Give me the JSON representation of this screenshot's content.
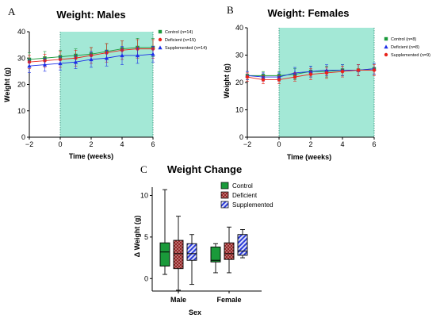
{
  "panel_labels": {
    "A": "A",
    "B": "B",
    "C": "C"
  },
  "chart_data": [
    {
      "type": "line",
      "title": "Weight: Males",
      "xlabel": "Time (weeks)",
      "ylabel": "Weight (g)",
      "xlim": [
        -2,
        6
      ],
      "ylim": [
        0,
        40
      ],
      "x_ticks": [
        -2,
        0,
        2,
        4,
        6
      ],
      "y_ticks": [
        0,
        10,
        20,
        30,
        40
      ],
      "x_tick_labels": [
        "−2",
        "0",
        "2",
        "4",
        "6"
      ],
      "y_tick_labels": [
        "0",
        "10",
        "20",
        "30",
        "40"
      ],
      "shaded_region": [
        0,
        6
      ],
      "shade_color": "#a3e8d6",
      "legend_position": "top-right",
      "x": [
        -2,
        -1,
        0,
        1,
        2,
        3,
        4,
        5,
        6
      ],
      "series": [
        {
          "name": "Control (n=14)",
          "color": "#1a9a3a",
          "marker": "square",
          "values": [
            29.5,
            30.0,
            30.5,
            31.0,
            31.5,
            32.5,
            33.5,
            34.0,
            34.0
          ],
          "errors": [
            2.5,
            2.5,
            2.5,
            2.5,
            2.5,
            3.0,
            3.0,
            3.5,
            3.5
          ]
        },
        {
          "name": "Deficient (n=15)",
          "color": "#e8241c",
          "marker": "circle",
          "values": [
            28.5,
            29.0,
            29.5,
            30.0,
            31.0,
            32.0,
            33.0,
            33.5,
            33.5
          ],
          "errors": [
            2.5,
            2.5,
            3.0,
            3.0,
            3.0,
            3.5,
            3.5,
            3.5,
            3.5
          ]
        },
        {
          "name": "Supplemented (n=14)",
          "color": "#1c2ee8",
          "marker": "triangle",
          "values": [
            27.0,
            27.5,
            28.0,
            28.5,
            29.5,
            30.0,
            31.0,
            31.0,
            31.5
          ],
          "errors": [
            2.5,
            2.5,
            2.5,
            2.5,
            3.0,
            3.0,
            3.5,
            3.0,
            3.0
          ]
        }
      ]
    },
    {
      "type": "line",
      "title": "Weight: Females",
      "xlabel": "Time (weeks)",
      "ylabel": "Weight (g)",
      "xlim": [
        -2,
        6
      ],
      "ylim": [
        0,
        40
      ],
      "x_ticks": [
        -2,
        0,
        2,
        4,
        6
      ],
      "y_ticks": [
        0,
        10,
        20,
        30,
        40
      ],
      "x_tick_labels": [
        "−2",
        "0",
        "2",
        "4",
        "6"
      ],
      "y_tick_labels": [
        "0",
        "10",
        "20",
        "30",
        "40"
      ],
      "shaded_region": [
        0,
        6
      ],
      "shade_color": "#a3e8d6",
      "legend_position": "top-right",
      "x": [
        -2,
        -1,
        0,
        1,
        2,
        3,
        4,
        5,
        6
      ],
      "series": [
        {
          "name": "Control (n=8)",
          "color": "#1a9a3a",
          "marker": "square",
          "values": [
            22.5,
            22.5,
            22.5,
            23.0,
            24.0,
            24.0,
            24.5,
            24.5,
            25.0
          ],
          "errors": [
            1.5,
            1.5,
            1.5,
            2.0,
            2.0,
            2.0,
            2.0,
            2.0,
            2.0
          ]
        },
        {
          "name": "Deficient (n=8)",
          "color": "#1c2ee8",
          "marker": "triangle",
          "values": [
            22.5,
            22.0,
            22.0,
            23.5,
            24.0,
            24.5,
            24.5,
            24.5,
            25.0
          ],
          "errors": [
            1.5,
            1.5,
            1.5,
            2.0,
            2.0,
            2.0,
            2.0,
            2.0,
            2.0
          ]
        },
        {
          "name": "Supplemented (n=9)",
          "color": "#e8241c",
          "marker": "circle",
          "values": [
            22.0,
            21.0,
            21.0,
            22.0,
            23.0,
            23.5,
            24.0,
            24.5,
            24.5
          ],
          "errors": [
            1.5,
            1.5,
            1.5,
            1.5,
            2.0,
            2.0,
            2.0,
            2.0,
            2.0
          ]
        }
      ]
    },
    {
      "type": "box",
      "title": "Weight Change",
      "xlabel": "Sex",
      "ylabel": "Δ Weight (g)",
      "categories": [
        "Male",
        "Female"
      ],
      "ylim": [
        -1.5,
        11
      ],
      "y_ticks": [
        0,
        5,
        10
      ],
      "y_tick_labels": [
        "0",
        "5",
        "10"
      ],
      "legend_position": "top-right",
      "series": [
        {
          "name": "Control",
          "color": "#1a9a3a",
          "fill": "solid",
          "boxes": [
            {
              "min": 0.5,
              "q1": 1.5,
              "median": 3.2,
              "q3": 4.3,
              "max": 10.7
            },
            {
              "min": 0.7,
              "q1": 2.0,
              "median": 2.2,
              "q3": 3.8,
              "max": 4.2
            }
          ]
        },
        {
          "name": "Deficient",
          "color": "#8b1a1a",
          "fill": "crosshatch",
          "boxes": [
            {
              "min": -1.4,
              "q1": 1.2,
              "median": 3.0,
              "q3": 4.6,
              "max": 7.5
            },
            {
              "min": 0.7,
              "q1": 2.3,
              "median": 3.0,
              "q3": 4.3,
              "max": 6.2
            }
          ]
        },
        {
          "name": "Supplemented",
          "color": "#2b3bd6",
          "fill": "stripes",
          "boxes": [
            {
              "min": -0.7,
              "q1": 2.2,
              "median": 3.0,
              "q3": 4.2,
              "max": 5.3
            },
            {
              "min": 2.5,
              "q1": 2.8,
              "median": 3.3,
              "q3": 5.3,
              "max": 5.9
            }
          ]
        }
      ]
    }
  ]
}
